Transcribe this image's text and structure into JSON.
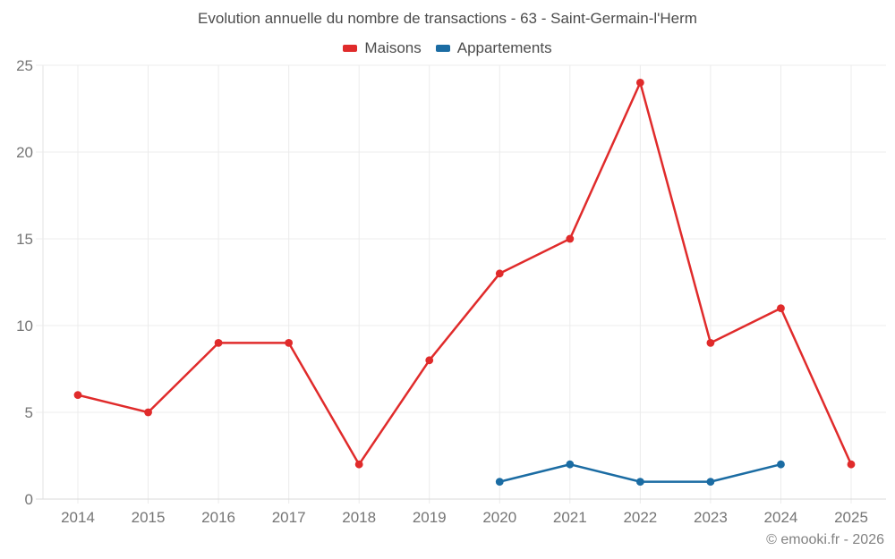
{
  "title": "Evolution annuelle du nombre de transactions - 63 - Saint-Germain-l'Herm",
  "footer": "© emooki.fr - 2026",
  "legend": [
    {
      "label": "Maisons",
      "color": "#e02b2b"
    },
    {
      "label": "Appartements",
      "color": "#1b6ca3"
    }
  ],
  "chart_data": {
    "type": "line",
    "title": "Evolution annuelle du nombre de transactions - 63 - Saint-Germain-l'Herm",
    "x": [
      "2014",
      "2015",
      "2016",
      "2017",
      "2018",
      "2019",
      "2020",
      "2021",
      "2022",
      "2023",
      "2024",
      "2025"
    ],
    "series": [
      {
        "name": "Maisons",
        "color": "#e02b2b",
        "values": [
          6,
          5,
          9,
          9,
          2,
          8,
          13,
          15,
          24,
          9,
          11,
          2
        ]
      },
      {
        "name": "Appartements",
        "color": "#1b6ca3",
        "values": [
          null,
          null,
          null,
          null,
          null,
          null,
          1,
          2,
          1,
          1,
          2,
          null
        ]
      }
    ],
    "xlabel": "",
    "ylabel": "",
    "ylim": [
      0,
      25
    ],
    "yticks": [
      0,
      5,
      10,
      15,
      20,
      25
    ],
    "grid": true,
    "legend_position": "top",
    "marker": "circle"
  }
}
